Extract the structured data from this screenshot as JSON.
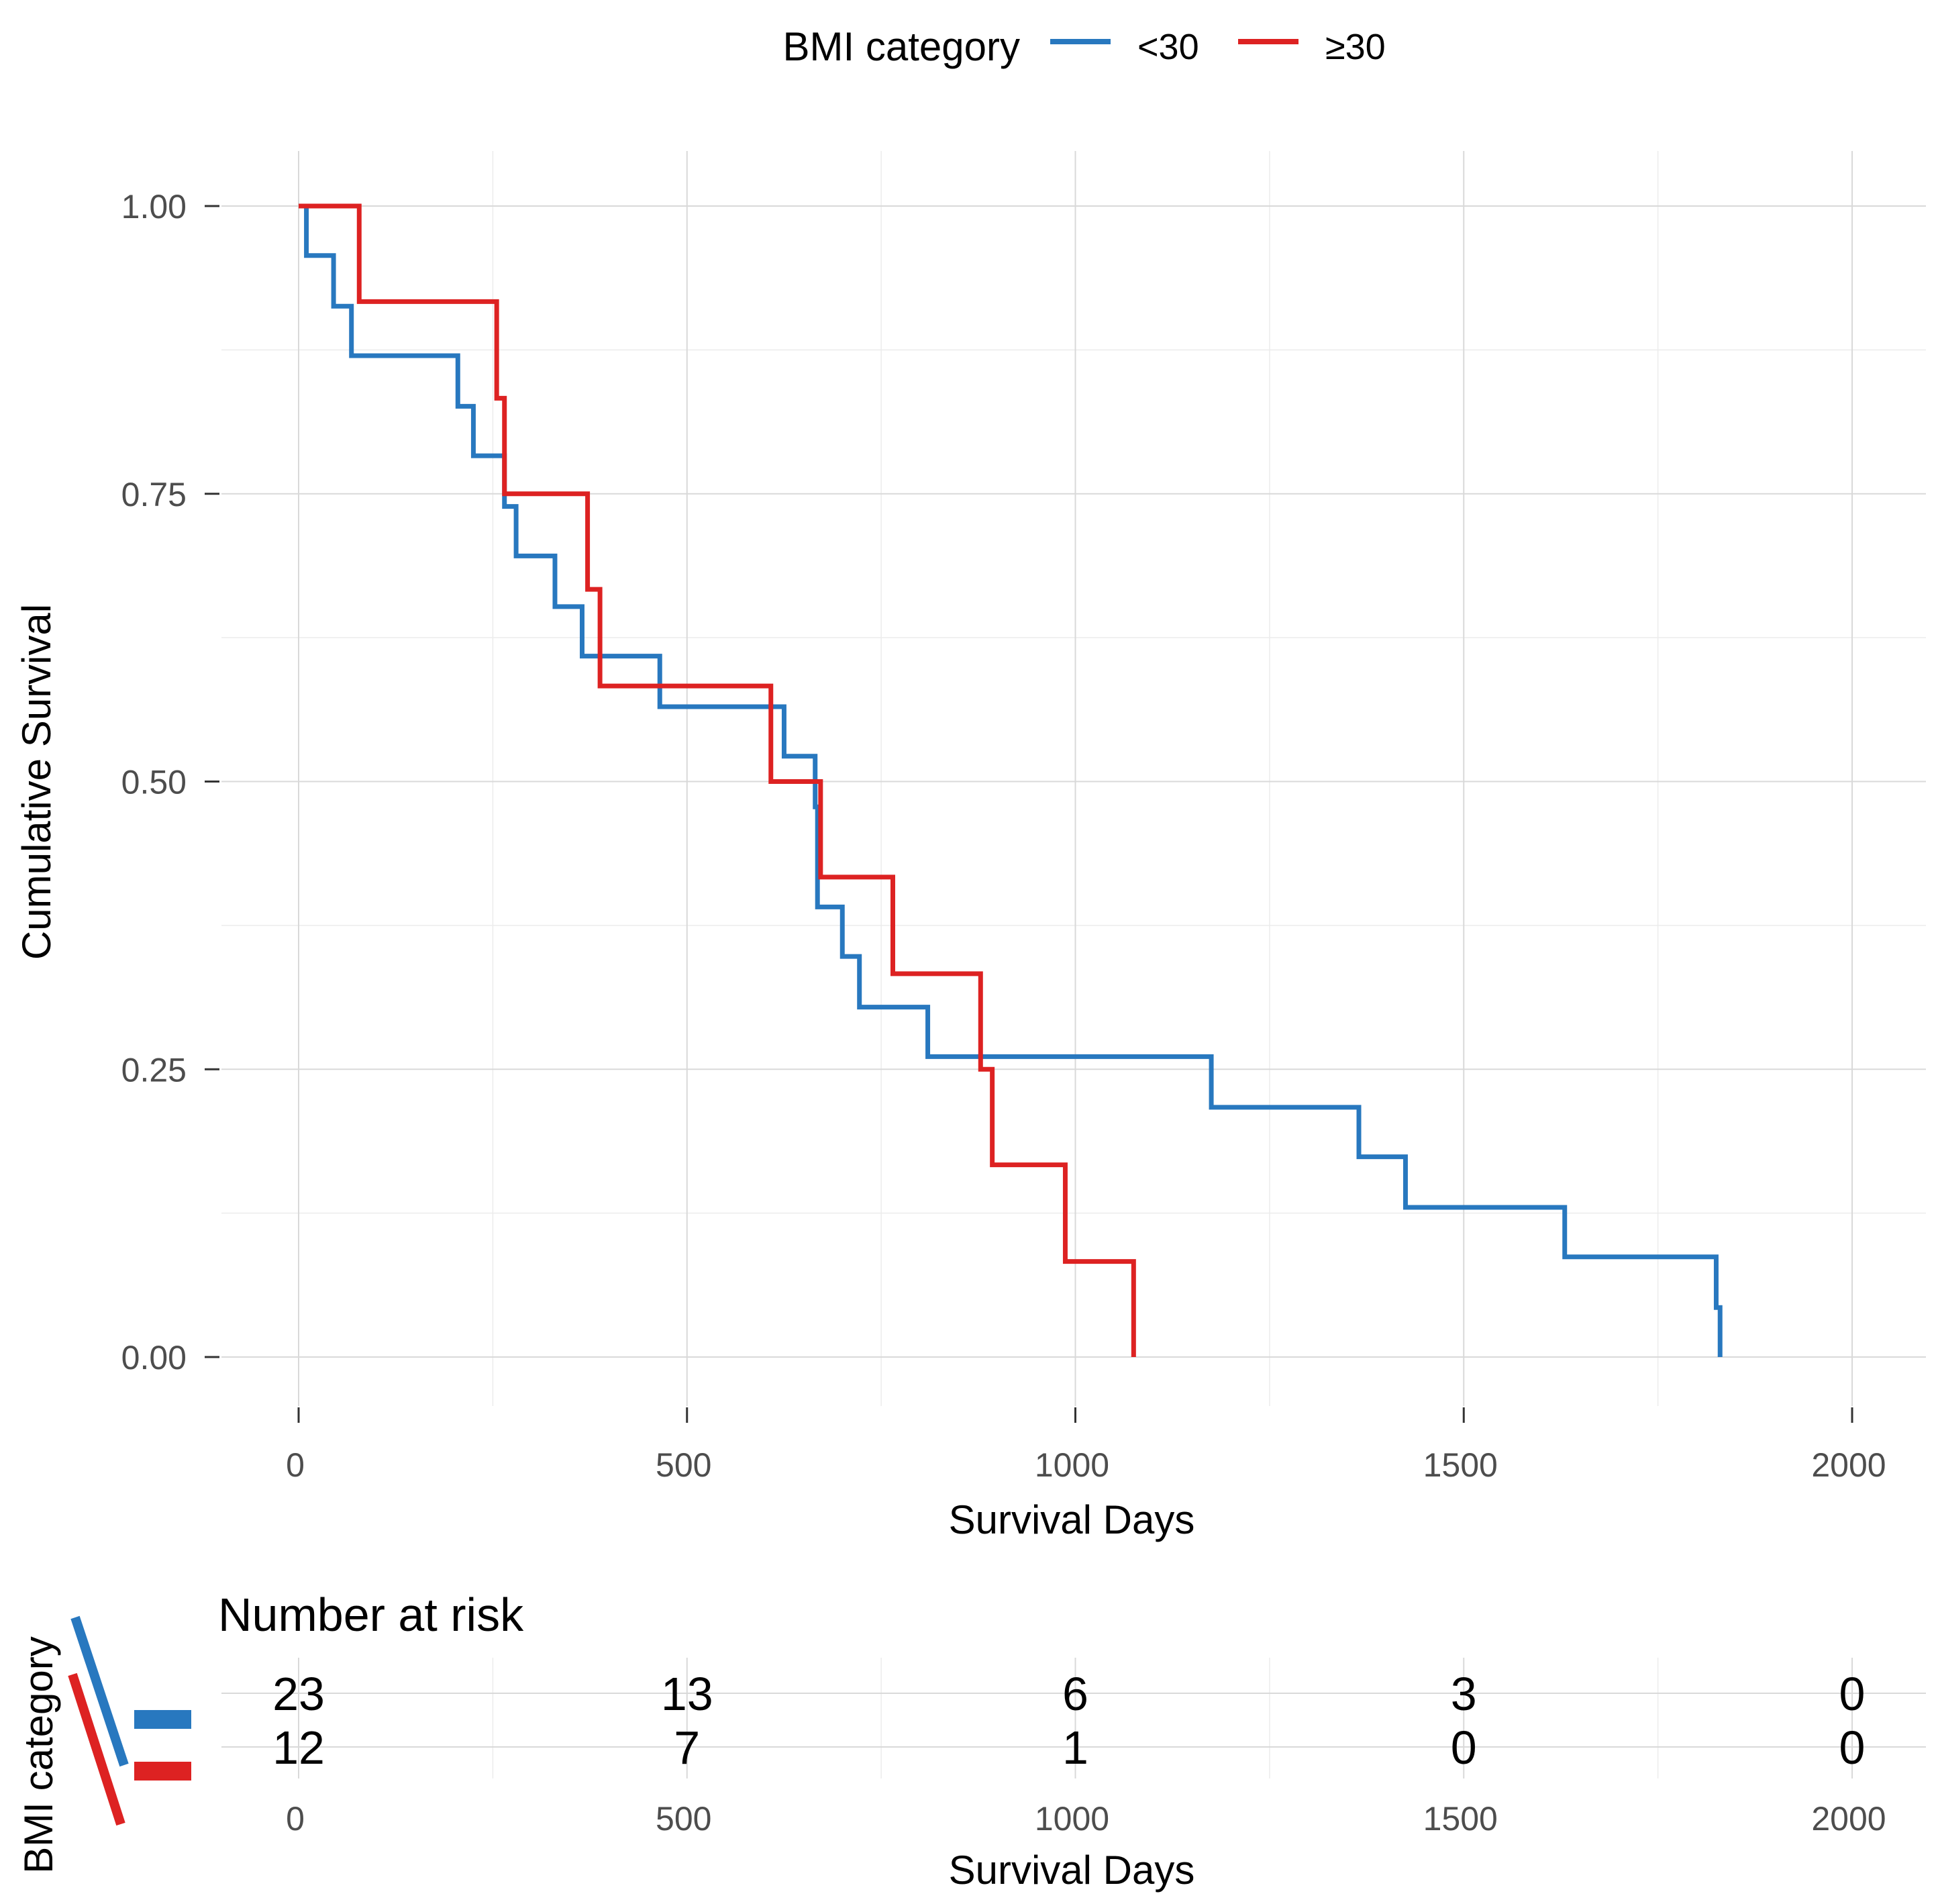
{
  "colors": {
    "lt30": "#2878bf",
    "ge30": "#dd2222"
  },
  "legend": {
    "title": "BMI category",
    "items": [
      {
        "label": "<30",
        "color": "#2878bf"
      },
      {
        "label": "≥30",
        "color": "#dd2222"
      }
    ]
  },
  "chart_data": [
    {
      "type": "line",
      "title": "",
      "xlabel": "Survival Days",
      "ylabel": "Cumulative Survival",
      "xlim": [
        0,
        2000
      ],
      "ylim": [
        0,
        1
      ],
      "x_ticks": [
        "0",
        "500",
        "1000",
        "1500",
        "2000"
      ],
      "y_ticks": [
        "0.00",
        "0.25",
        "0.50",
        "0.75",
        "1.00"
      ],
      "grid": true,
      "legend_position": "top",
      "series": [
        {
          "name": "<30",
          "color": "#2878bf",
          "step": true,
          "x": [
            0,
            10,
            45,
            68,
            205,
            225,
            265,
            280,
            330,
            365,
            465,
            625,
            665,
            668,
            700,
            722,
            810,
            1175,
            1365,
            1425,
            1630,
            1825,
            1830
          ],
          "y": [
            1.0,
            0.957,
            0.913,
            0.87,
            0.826,
            0.783,
            0.739,
            0.696,
            0.652,
            0.609,
            0.565,
            0.522,
            0.478,
            0.391,
            0.348,
            0.304,
            0.261,
            0.217,
            0.174,
            0.13,
            0.087,
            0.043,
            0.0
          ]
        },
        {
          "name": "≥30",
          "color": "#dd2222",
          "step": true,
          "x": [
            0,
            78,
            255,
            265,
            372,
            388,
            608,
            672,
            765,
            878,
            893,
            987,
            1075
          ],
          "y": [
            1.0,
            0.917,
            0.833,
            0.75,
            0.667,
            0.583,
            0.5,
            0.417,
            0.333,
            0.25,
            0.167,
            0.083,
            0.0
          ]
        }
      ]
    },
    {
      "type": "table",
      "title": "Number at risk",
      "xlabel": "Survival Days",
      "ylabel": "BMI category",
      "x_ticks": [
        "0",
        "500",
        "1000",
        "1500",
        "2000"
      ],
      "rows": [
        {
          "group": "<30",
          "color": "#2878bf",
          "values": [
            "23",
            "13",
            "6",
            "3",
            "0"
          ]
        },
        {
          "group": "≥30",
          "color": "#dd2222",
          "values": [
            "12",
            "7",
            "1",
            "0",
            "0"
          ]
        }
      ]
    }
  ]
}
